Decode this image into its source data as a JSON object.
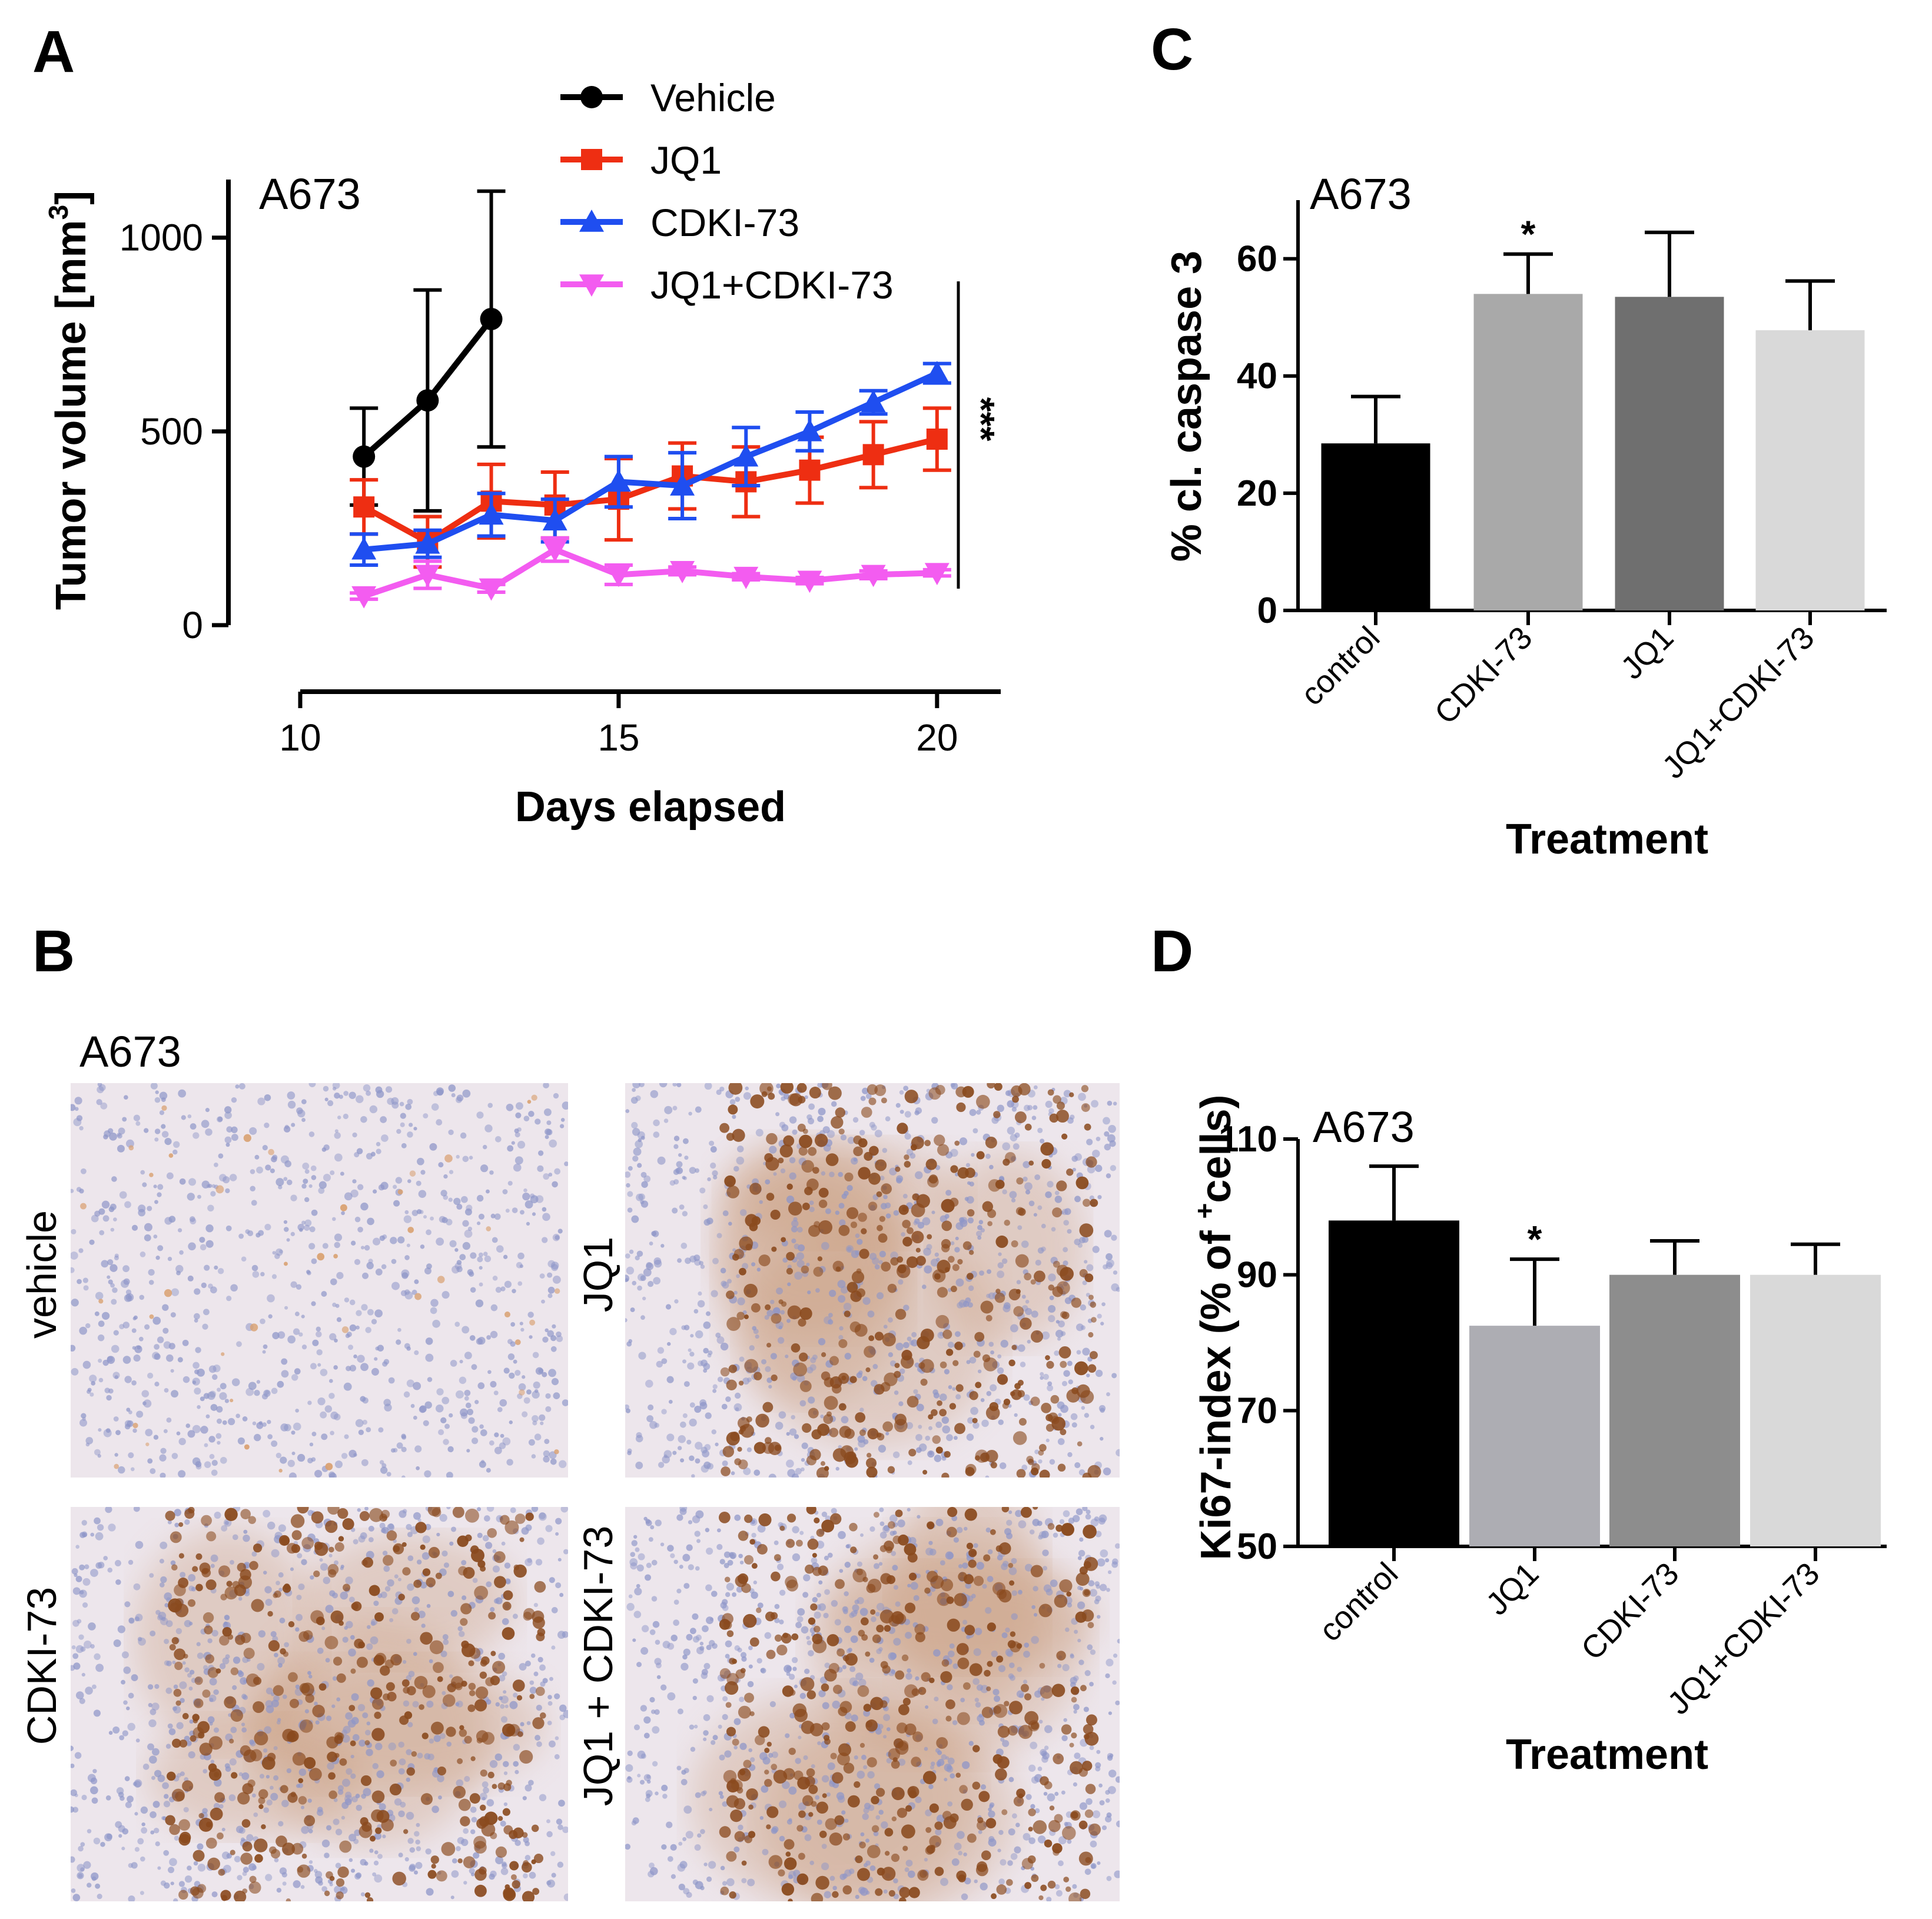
{
  "colors": {
    "vehicle": "#000000",
    "jq1": "#ee2e12",
    "cdki73": "#1f4ef0",
    "combo": "#f35cf0",
    "stain_brown": "#8a4a1e",
    "stain_blue": "#8d95c8",
    "tissue_bg": "#ede6ec"
  },
  "panels": {
    "A": {
      "label": "A",
      "cell_line": "A673"
    },
    "B": {
      "label": "B",
      "cell_line": "A673",
      "images": [
        {
          "label": "vehicle",
          "stain": "low"
        },
        {
          "label": "JQ1",
          "stain": "high"
        },
        {
          "label": "CDKI-73",
          "stain": "high"
        },
        {
          "label": "JQ1 + CDKI-73",
          "stain": "high"
        }
      ]
    },
    "C": {
      "label": "C",
      "cell_line": "A673"
    },
    "D": {
      "label": "D",
      "cell_line": "A673"
    }
  },
  "chart_data": [
    {
      "panel": "A",
      "type": "line",
      "title": "A673",
      "xlabel": "Days elapsed",
      "ylabel": "Tumor volume [mm",
      "ylabel_sup": "3",
      "ylabel_end": "]",
      "xlim": [
        10,
        21
      ],
      "ylim": [
        0,
        1150
      ],
      "xticks": [
        10,
        15,
        20
      ],
      "yticks": [
        0,
        500,
        1000
      ],
      "significance": "***",
      "series": [
        {
          "name": "Vehicle",
          "color": "#000000",
          "marker": "circle",
          "x": [
            11,
            12,
            13
          ],
          "y": [
            435,
            580,
            790
          ],
          "err": [
            125,
            285,
            330
          ]
        },
        {
          "name": "JQ1",
          "color": "#ee2e12",
          "marker": "square",
          "x": [
            11,
            12,
            13,
            14,
            15,
            16,
            17,
            18,
            19,
            20
          ],
          "y": [
            305,
            215,
            320,
            310,
            325,
            385,
            370,
            400,
            440,
            480
          ],
          "err": [
            70,
            65,
            95,
            85,
            105,
            85,
            90,
            85,
            85,
            80
          ]
        },
        {
          "name": "CDKI-73",
          "color": "#1f4ef0",
          "marker": "triangle-up",
          "x": [
            11,
            12,
            13,
            14,
            15,
            16,
            17,
            18,
            19,
            20
          ],
          "y": [
            195,
            210,
            285,
            270,
            370,
            360,
            435,
            500,
            575,
            650
          ],
          "err": [
            40,
            35,
            55,
            55,
            65,
            85,
            75,
            50,
            30,
            25
          ]
        },
        {
          "name": "JQ1+CDKI-73",
          "color": "#f35cf0",
          "marker": "triangle-down",
          "x": [
            11,
            12,
            13,
            14,
            15,
            16,
            17,
            18,
            19,
            20
          ],
          "y": [
            75,
            130,
            95,
            195,
            130,
            140,
            125,
            115,
            130,
            135
          ],
          "err": [
            8,
            35,
            10,
            30,
            25,
            10,
            8,
            8,
            10,
            8
          ]
        }
      ]
    },
    {
      "panel": "C",
      "type": "bar",
      "title": "A673",
      "xlabel": "Treatment",
      "ylabel": "% cl. caspase 3",
      "ylim": [
        0,
        70
      ],
      "yticks": [
        0,
        20,
        40,
        60
      ],
      "categories": [
        "control",
        "CDKI-73",
        "JQ1",
        "JQ1+CDKI-73"
      ],
      "values": [
        28.5,
        54,
        53.5,
        47.8
      ],
      "errors": [
        8,
        6.8,
        11,
        8.4
      ],
      "significance": [
        "",
        "*",
        "",
        ""
      ],
      "bar_colors": [
        "#000000",
        "#a9a9a9",
        "#6f6f6f",
        "#d9d9d9"
      ]
    },
    {
      "panel": "D",
      "type": "bar",
      "title": "A673",
      "xlabel": "Treatment",
      "ylabel": "Ki67-index (% of ",
      "ylabel_sup": "+",
      "ylabel_end": "cells)",
      "ylim": [
        50,
        110
      ],
      "yticks": [
        50,
        70,
        90,
        110
      ],
      "categories": [
        "control",
        "JQ1",
        "CDKI-73",
        "JQ1+CDKI-73"
      ],
      "values": [
        98,
        82.5,
        90,
        90
      ],
      "errors": [
        8,
        9.8,
        5,
        4.5
      ],
      "significance": [
        "",
        "*",
        "",
        ""
      ],
      "bar_colors": [
        "#000000",
        "#adadb3",
        "#8d8d8d",
        "#d9d9d9"
      ]
    }
  ]
}
